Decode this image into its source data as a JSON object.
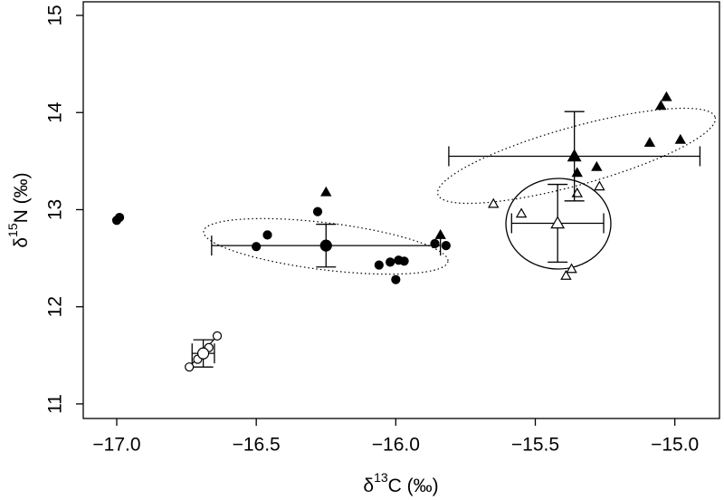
{
  "chart_data": {
    "type": "scatter",
    "xlabel": {
      "symbol": "δ",
      "sup": "13",
      "rest": "C (‰)"
    },
    "ylabel": {
      "symbol": "δ",
      "sup": "15",
      "rest": "N (‰)"
    },
    "xlim": [
      -17.12,
      -14.84
    ],
    "ylim": [
      10.85,
      15.14
    ],
    "xticks": [
      {
        "value": -17,
        "label": "−17.0"
      },
      {
        "value": -16.5,
        "label": "−16.5"
      },
      {
        "value": -16,
        "label": "−16.0"
      },
      {
        "value": -15.5,
        "label": "−15.5"
      },
      {
        "value": -15,
        "label": "−15.0"
      }
    ],
    "yticks": [
      11,
      12,
      13,
      14,
      15
    ],
    "series": [
      {
        "marker": "circle-filled",
        "color": "#000000",
        "x": [
          -17.0,
          -16.99,
          -16.5,
          -16.46,
          -16.28,
          -16.06,
          -16.02,
          -16.0,
          -15.99,
          -15.97,
          -15.86,
          -15.82
        ],
        "values": [
          12.89,
          12.92,
          12.62,
          12.74,
          12.98,
          12.43,
          12.46,
          12.28,
          12.48,
          12.47,
          12.65,
          12.63
        ]
      },
      {
        "marker": "triangle-filled",
        "color": "#000000",
        "x": [
          -16.25,
          -15.84,
          -15.35,
          -15.28,
          -15.09,
          -15.05,
          -15.03,
          -14.98
        ],
        "values": [
          13.18,
          12.74,
          13.38,
          13.44,
          13.69,
          14.07,
          14.16,
          13.72
        ]
      },
      {
        "marker": "triangle-open",
        "color": "#000000",
        "x": [
          -15.65,
          -15.55,
          -15.35,
          -15.27,
          -15.37,
          -15.39
        ],
        "values": [
          13.06,
          12.96,
          13.17,
          13.24,
          12.39,
          12.32
        ]
      },
      {
        "marker": "circle-open",
        "color": "#000000",
        "x": [
          -16.74,
          -16.71,
          -16.69,
          -16.67,
          -16.64
        ],
        "values": [
          11.38,
          11.46,
          11.51,
          11.58,
          11.7
        ]
      }
    ],
    "means": [
      {
        "marker": "circle-filled",
        "x": -16.25,
        "y": 12.63,
        "xerr": 0.41,
        "yerr": 0.22
      },
      {
        "marker": "triangle-filled",
        "x": -15.36,
        "y": 13.55,
        "xerr": 0.45,
        "yerr": 0.46
      },
      {
        "marker": "triangle-open",
        "x": -15.42,
        "y": 12.86,
        "xerr": 0.165,
        "yerr": 0.4
      },
      {
        "marker": "circle-open",
        "x": -16.69,
        "y": 11.52,
        "xerr": 0.04,
        "yerr": 0.14
      }
    ]
  }
}
